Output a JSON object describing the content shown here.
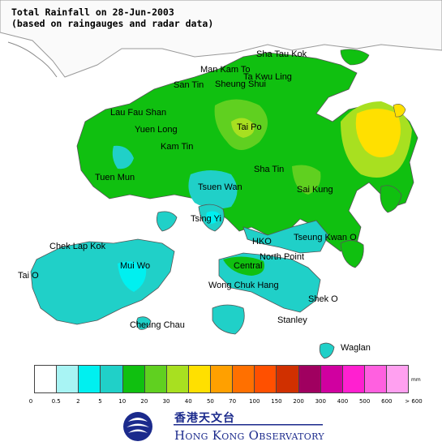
{
  "title": {
    "line1": "Total Rainfall on 28-Jun-2003",
    "line2": "(based on raingauges and radar data)"
  },
  "places": [
    "Sha Tau Kok",
    "Man Kam To",
    "Ta Kwu Ling",
    "San Tin",
    "Sheung Shui",
    "Lau Fau Shan",
    "Yuen Long",
    "Tai Po",
    "Kam Tin",
    "Tuen Mun",
    "Sha Tin",
    "Tsuen Wan",
    "Sai Kung",
    "Tsing Yi",
    "Chek Lap Kok",
    "HKO",
    "Tseung Kwan O",
    "North Point",
    "Mui Wo",
    "Central",
    "Tai O",
    "Wong Chuk Hang",
    "Shek O",
    "Stanley",
    "Cheung Chau",
    "Waglan"
  ],
  "legend": {
    "unit": "mm",
    "colors": [
      "#ffffff",
      "#a8f4f4",
      "#00f0f0",
      "#20d0c8",
      "#10c010",
      "#60d020",
      "#a8e020",
      "#ffe000",
      "#ffa000",
      "#ff7000",
      "#ff5000",
      "#d03000",
      "#a00060",
      "#d000a0",
      "#ff20d0",
      "#ff60e0",
      "#ffa0f0",
      "#ffe0ff"
    ],
    "ticks": [
      "0",
      "0.5",
      "2",
      "5",
      "10",
      "20",
      "30",
      "40",
      "50",
      "70",
      "100",
      "150",
      "200",
      "300",
      "400",
      "500",
      "600",
      "> 600"
    ]
  },
  "organization": {
    "name_cn": "香港天文台",
    "name_en": "Hong Kong Observatory",
    "logo": "hko-logo"
  }
}
